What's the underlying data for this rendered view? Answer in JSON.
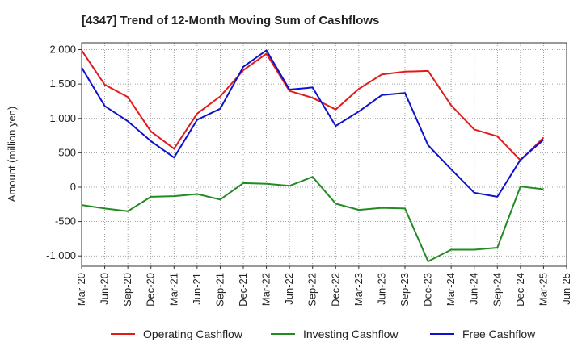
{
  "chart_data": {
    "type": "line",
    "title": "[4347]  Trend of 12-Month Moving Sum of Cashflows",
    "xlabel": "",
    "ylabel": "Amount (million yen)",
    "ylim": [
      -1150,
      2100
    ],
    "yticks": [
      2000,
      1500,
      1000,
      500,
      0,
      -500,
      -1000
    ],
    "ytick_labels": [
      "2,000",
      "1,500",
      "1,000",
      "500",
      "0",
      "-500",
      "-1,000"
    ],
    "categories": [
      "Mar-20",
      "Jun-20",
      "Sep-20",
      "Dec-20",
      "Mar-21",
      "Jun-21",
      "Sep-21",
      "Dec-21",
      "Mar-22",
      "Jun-22",
      "Sep-22",
      "Dec-22",
      "Mar-23",
      "Jun-23",
      "Sep-23",
      "Dec-23",
      "Mar-24",
      "Jun-24",
      "Sep-24",
      "Dec-24",
      "Mar-25",
      "Jun-25"
    ],
    "grid": true,
    "legend_position": "bottom",
    "series": [
      {
        "name": "Operating Cashflow",
        "color": "#e31a1c",
        "values": [
          1990,
          1490,
          1310,
          810,
          560,
          1070,
          1320,
          1700,
          1940,
          1400,
          1300,
          1130,
          1430,
          1640,
          1680,
          1690,
          1190,
          840,
          740,
          390,
          720,
          null
        ]
      },
      {
        "name": "Investing Cashflow",
        "color": "#228b22",
        "values": [
          -260,
          -310,
          -350,
          -140,
          -130,
          -100,
          -180,
          60,
          50,
          20,
          150,
          -240,
          -330,
          -300,
          -310,
          -1080,
          -910,
          -910,
          -880,
          10,
          -30,
          null
        ]
      },
      {
        "name": "Free Cashflow",
        "color": "#1010d0",
        "values": [
          1740,
          1180,
          960,
          670,
          430,
          980,
          1140,
          1750,
          1990,
          1420,
          1450,
          890,
          1100,
          1340,
          1370,
          610,
          260,
          -80,
          -140,
          400,
          690,
          null
        ]
      }
    ]
  }
}
